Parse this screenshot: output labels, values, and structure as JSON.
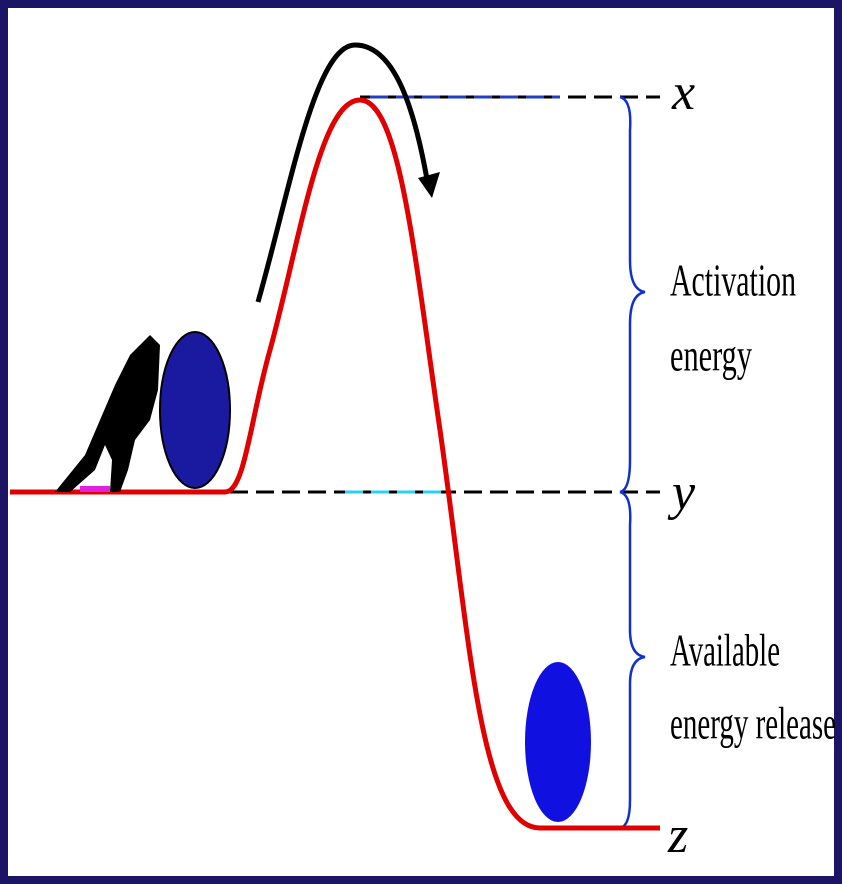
{
  "levels": {
    "x": "x",
    "y": "y",
    "z": "z"
  },
  "activation_label": {
    "line1": "Activation",
    "line2": "energy"
  },
  "release_label": {
    "line1": "Available",
    "line2": "energy release"
  }
}
